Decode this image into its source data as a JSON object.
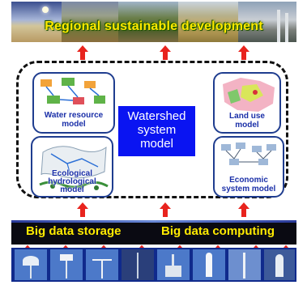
{
  "header": {
    "title": "Regional sustainable development"
  },
  "center": {
    "line1": "Watershed",
    "line2": "system",
    "line3": "model"
  },
  "models": {
    "water": {
      "line1": "Water resource",
      "line2": "model"
    },
    "land": {
      "line1": "Land use",
      "line2": "model"
    },
    "eco": {
      "line1": "Ecological",
      "line2": "hydrological",
      "line3": "model"
    },
    "econ": {
      "line1": "Economic",
      "line2": "system model"
    }
  },
  "data_layer": {
    "storage": "Big data storage",
    "computing": "Big data computing"
  },
  "colors": {
    "arrow": "#e8231d",
    "center_box": "#0a14f2",
    "title_text": "#ffe800",
    "model_label": "#1a2fa8",
    "data_text": "#ffea00"
  }
}
